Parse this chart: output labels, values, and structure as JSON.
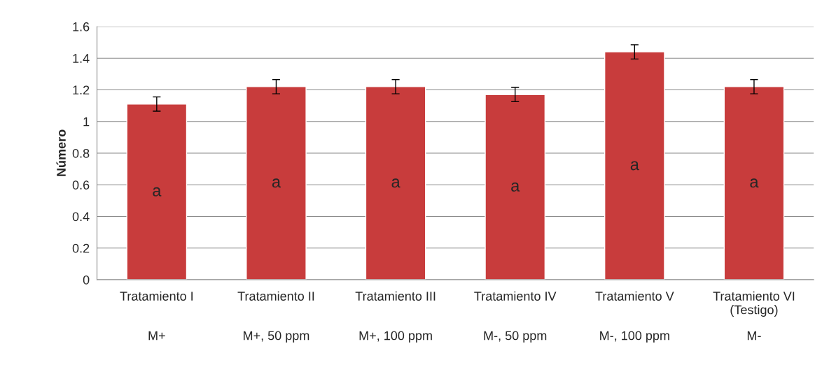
{
  "chart_data": {
    "type": "bar",
    "ylabel": "Número",
    "categories": [
      "Tratamiento I",
      "Tratamiento II",
      "Tratamiento III",
      "Tratamiento IV",
      "Tratamiento V",
      "Tratamiento VI\n(Testigo)"
    ],
    "values": [
      1.11,
      1.22,
      1.22,
      1.17,
      1.44,
      1.22
    ],
    "errors": [
      0.045,
      0.045,
      0.045,
      0.045,
      0.045,
      0.045
    ],
    "color": "#c83c3c",
    "ylim": [
      0,
      1.6
    ],
    "yticks": [
      0,
      {
        "value": 0.2,
        "label": "0.2"
      },
      {
        "value": 0.4,
        "label": "0.4"
      },
      {
        "value": 0.6,
        "label": "0.6"
      },
      {
        "value": 0.8,
        "label": "0.8"
      },
      1,
      {
        "value": 1.2,
        "label": "1.2"
      },
      {
        "value": 1.4,
        "label": "1.4"
      },
      {
        "value": 1.6,
        "label": "1.6"
      }
    ],
    "grid": "y",
    "annotations": [
      "a",
      "a",
      "a",
      "a",
      "a",
      "a",
      "M+",
      "M+, 50 ppm",
      "M+, 100 ppm",
      "M-, 50 ppm",
      "M-, 100 ppm",
      "M-"
    ]
  }
}
